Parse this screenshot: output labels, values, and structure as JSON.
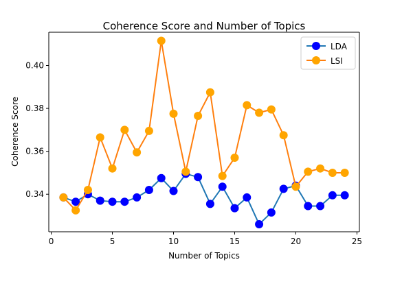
{
  "chart_data": {
    "type": "line",
    "title": "Coherence Score and Number of Topics",
    "xlabel": "Number of Topics",
    "ylabel": "Coherence Score",
    "xlim": [
      -0.2,
      25.2
    ],
    "ylim": [
      0.3225,
      0.4155
    ],
    "xticks": [
      0,
      5,
      10,
      15,
      20,
      25
    ],
    "xtick_labels": [
      "0",
      "5",
      "10",
      "15",
      "20",
      "25"
    ],
    "yticks": [
      0.34,
      0.36,
      0.38,
      0.4
    ],
    "ytick_labels": [
      "0.34",
      "0.36",
      "0.38",
      "0.40"
    ],
    "grid": false,
    "legend": "top-right",
    "x": [
      1,
      2,
      3,
      4,
      5,
      6,
      7,
      8,
      9,
      10,
      11,
      12,
      13,
      14,
      15,
      16,
      17,
      18,
      19,
      20,
      21,
      22,
      23,
      24
    ],
    "series": [
      {
        "name": "LDA",
        "color": "#1f77b4",
        "values": [
          0.3385,
          0.3365,
          0.34,
          0.337,
          0.3365,
          0.3365,
          0.3385,
          0.342,
          0.3475,
          0.3415,
          0.3495,
          0.348,
          0.3355,
          0.3435,
          0.3335,
          0.3385,
          0.326,
          0.3315,
          0.3425,
          0.344,
          0.3345,
          0.3345,
          0.3395,
          0.3395
        ]
      },
      {
        "name": "LSI",
        "color": "#ff7f0e",
        "values": [
          0.3385,
          0.3325,
          0.342,
          0.3665,
          0.352,
          0.37,
          0.3595,
          0.3695,
          0.4115,
          0.3775,
          0.3505,
          0.3765,
          0.3875,
          0.3485,
          0.357,
          0.3815,
          0.378,
          0.3795,
          0.3675,
          0.3435,
          0.3505,
          0.352,
          0.35,
          0.35
        ]
      }
    ]
  }
}
